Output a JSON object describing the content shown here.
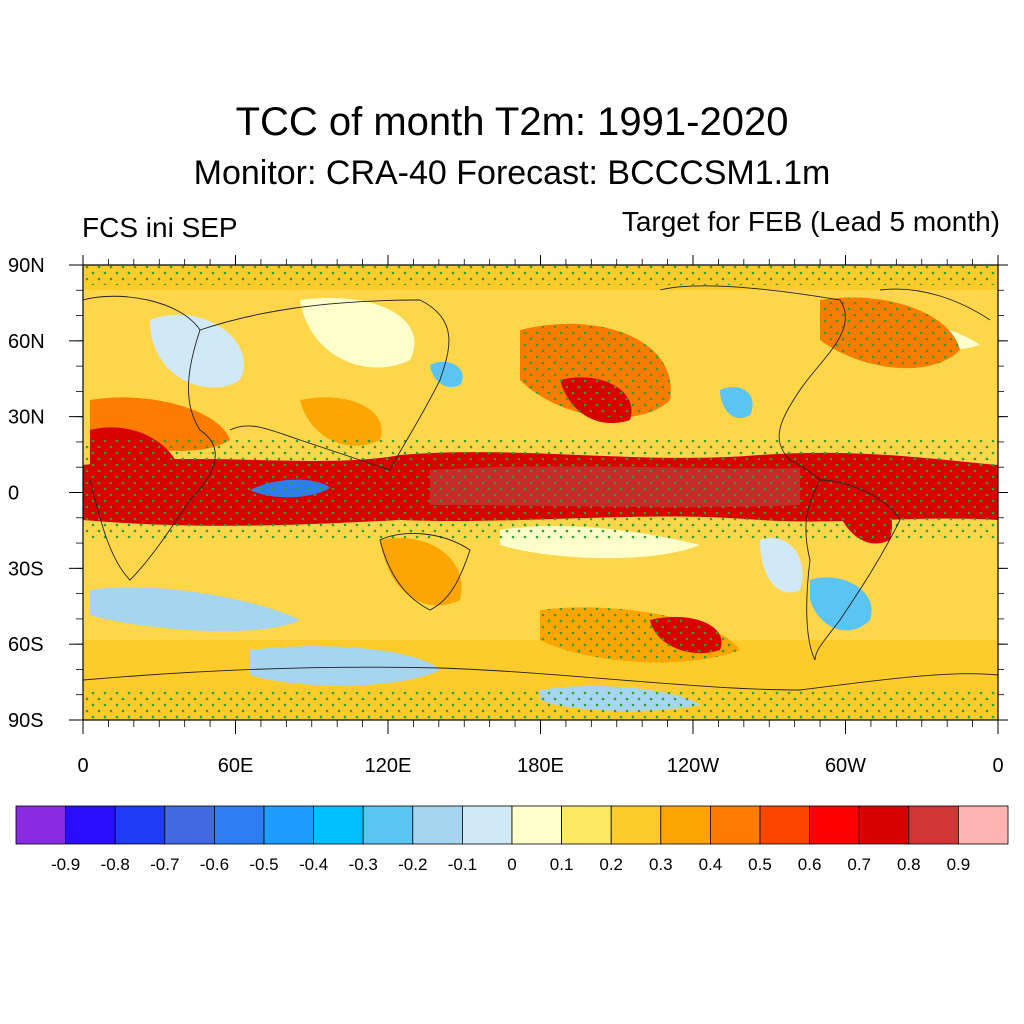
{
  "title": "TCC of month T2m: 1991-2020",
  "subtitle": "Monitor: CRA-40   Forecast: BCCCSM1.1m",
  "left_label": "FCS ini SEP",
  "right_label": "Target for FEB (Lead 5 month)",
  "map": {
    "lat_ticks": [
      "90N",
      "60N",
      "30N",
      "0",
      "30S",
      "60S",
      "90S"
    ],
    "lon_ticks": [
      "0",
      "60E",
      "120E",
      "180E",
      "120W",
      "60W",
      "0"
    ]
  },
  "colorbar": {
    "colors": [
      "#8a2be2",
      "#2a0cff",
      "#1f3cf5",
      "#4169e1",
      "#2e7df0",
      "#1e9cff",
      "#00bfff",
      "#5ac4f2",
      "#a6d5f0",
      "#d1e9f7",
      "#ffffcc",
      "#fde964",
      "#fdcb2a",
      "#fca503",
      "#fc7c00",
      "#fc4600",
      "#ff0000",
      "#d80000",
      "#d23535",
      "#ffb3b3"
    ],
    "labels": [
      "-0.9",
      "-0.8",
      "-0.7",
      "-0.6",
      "-0.5",
      "-0.4",
      "-0.3",
      "-0.2",
      "-0.1",
      "0",
      "0.1",
      "0.2",
      "0.3",
      "0.4",
      "0.5",
      "0.6",
      "0.7",
      "0.8",
      "0.9"
    ]
  }
}
